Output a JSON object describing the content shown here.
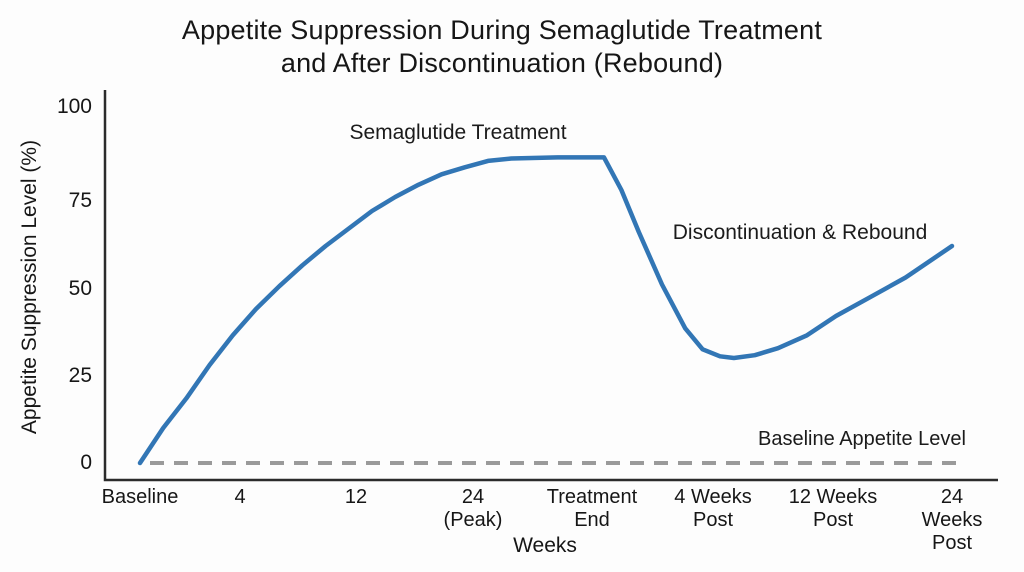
{
  "title": {
    "line1": "Appetite Suppression During Semaglutide Treatment",
    "line2": "and After Discontinuation (Rebound)"
  },
  "chart_data": {
    "type": "line",
    "title": "Appetite Suppression During Semaglutide Treatment and After Discontinuation (Rebound)",
    "xlabel": "Weeks",
    "ylabel": "Appetite Suppression Level (%)",
    "ylim": [
      0,
      100
    ],
    "grid": false,
    "legend": false,
    "yticks": [
      "100",
      "75",
      "50",
      "25",
      "0"
    ],
    "categories": [
      "Baseline",
      "4",
      "12",
      "24\n(Peak)",
      "Treatment\nEnd",
      "4 Weeks\nPost",
      "12 Weeks\nPost",
      "24 Weeks\nPost"
    ],
    "series": [
      {
        "name": "Appetite Suppression Level",
        "color": "#3276b5",
        "values_at_ticks": [
          0,
          44,
          72,
          86,
          87,
          30,
          42,
          62
        ],
        "smooth_points": [
          [
            0,
            0
          ],
          [
            0.2,
            10
          ],
          [
            0.4,
            18.5
          ],
          [
            0.6,
            28
          ],
          [
            0.8,
            36.5
          ],
          [
            1.0,
            44
          ],
          [
            1.2,
            50.5
          ],
          [
            1.4,
            56.5
          ],
          [
            1.6,
            62
          ],
          [
            1.8,
            67
          ],
          [
            2.0,
            72
          ],
          [
            2.2,
            76
          ],
          [
            2.4,
            79.5
          ],
          [
            2.6,
            82.5
          ],
          [
            2.8,
            84.5
          ],
          [
            3.0,
            86.3
          ],
          [
            3.2,
            87
          ],
          [
            3.6,
            87.3
          ],
          [
            4.0,
            87.3
          ],
          [
            4.15,
            78
          ],
          [
            4.3,
            66
          ],
          [
            4.5,
            51
          ],
          [
            4.7,
            38.5
          ],
          [
            4.85,
            32.5
          ],
          [
            5.0,
            30.5
          ],
          [
            5.12,
            30
          ],
          [
            5.3,
            30.8
          ],
          [
            5.5,
            32.8
          ],
          [
            5.75,
            36.5
          ],
          [
            6.0,
            42
          ],
          [
            6.3,
            47.5
          ],
          [
            6.6,
            53
          ],
          [
            7.0,
            62
          ]
        ]
      }
    ],
    "baseline_line": {
      "label": "Baseline Appetite Level",
      "value": 0,
      "color": "#9a9a9a",
      "style": "dashed"
    },
    "annotations": [
      {
        "text": "Semaglutide Treatment"
      },
      {
        "text": "Discontinuation & Rebound"
      }
    ]
  }
}
